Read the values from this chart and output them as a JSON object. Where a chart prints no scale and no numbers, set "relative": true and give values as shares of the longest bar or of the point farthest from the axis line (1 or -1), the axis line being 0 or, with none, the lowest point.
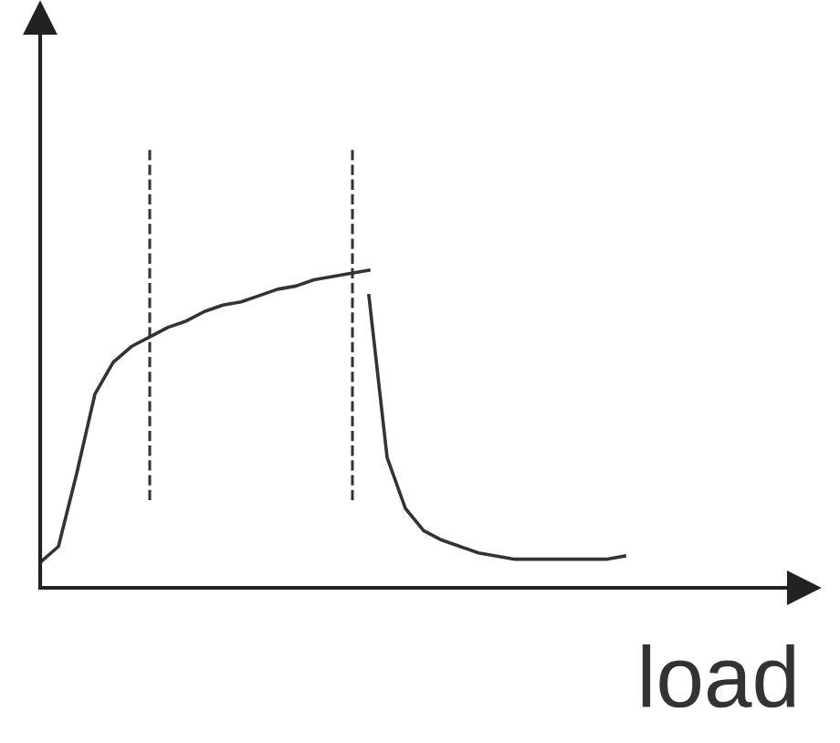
{
  "chart_data": {
    "type": "line",
    "relative": true,
    "xlabel": "load",
    "categories": [
      null,
      null,
      null,
      null,
      null,
      null,
      null,
      null,
      null,
      null,
      null,
      null,
      null,
      null,
      null,
      null,
      null,
      null,
      null,
      null,
      null,
      null,
      null,
      null,
      null,
      null,
      null,
      null,
      null,
      null,
      null,
      null,
      null
    ],
    "series": [
      {
        "color": "#333333",
        "values": [
          0.08,
          0.13,
          0.36,
          0.61,
          0.71,
          0.76,
          0.79,
          0.82,
          0.84,
          0.87,
          0.89,
          0.9,
          0.92,
          0.94,
          0.95,
          0.97,
          0.98,
          0.99,
          1.0,
          null,
          null,
          null,
          null,
          null,
          null,
          null,
          null,
          null,
          null,
          null,
          null,
          null,
          null
        ]
      },
      {
        "color": "#333333",
        "values": [
          null,
          null,
          null,
          null,
          null,
          null,
          null,
          null,
          null,
          null,
          null,
          null,
          null,
          null,
          null,
          null,
          null,
          null,
          0.92,
          0.41,
          0.25,
          0.18,
          0.15,
          0.13,
          0.11,
          0.1,
          0.09,
          0.09,
          0.09,
          0.09,
          0.09,
          0.09,
          0.1
        ]
      }
    ],
    "grid": false,
    "legend": false,
    "marker": "none",
    "line_style": "solid"
  }
}
